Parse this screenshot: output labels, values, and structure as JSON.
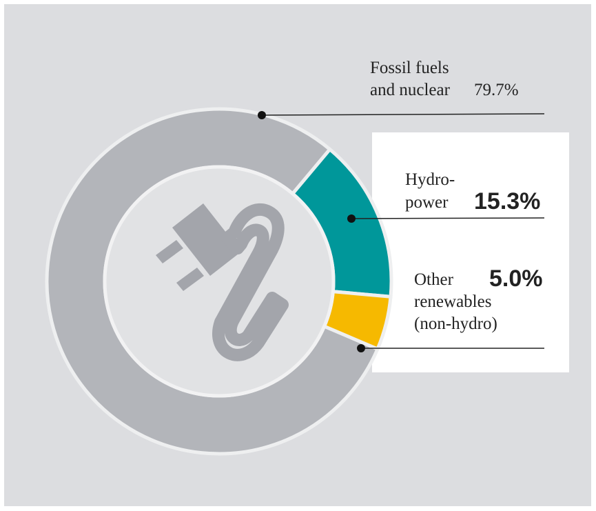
{
  "chart_data": {
    "type": "donut",
    "categories": [
      [
        "Fossil fuels",
        "and nuclear"
      ],
      [
        "Hydro-",
        "power"
      ],
      [
        "Other",
        "renewables",
        "(non-hydro)"
      ]
    ],
    "values": [
      79.7,
      15.3,
      5.0
    ],
    "value_labels": [
      "79.7%",
      "15.3%",
      "5.0%"
    ],
    "colors": [
      "#b3b5ba",
      "#00979a",
      "#f6b900"
    ]
  }
}
